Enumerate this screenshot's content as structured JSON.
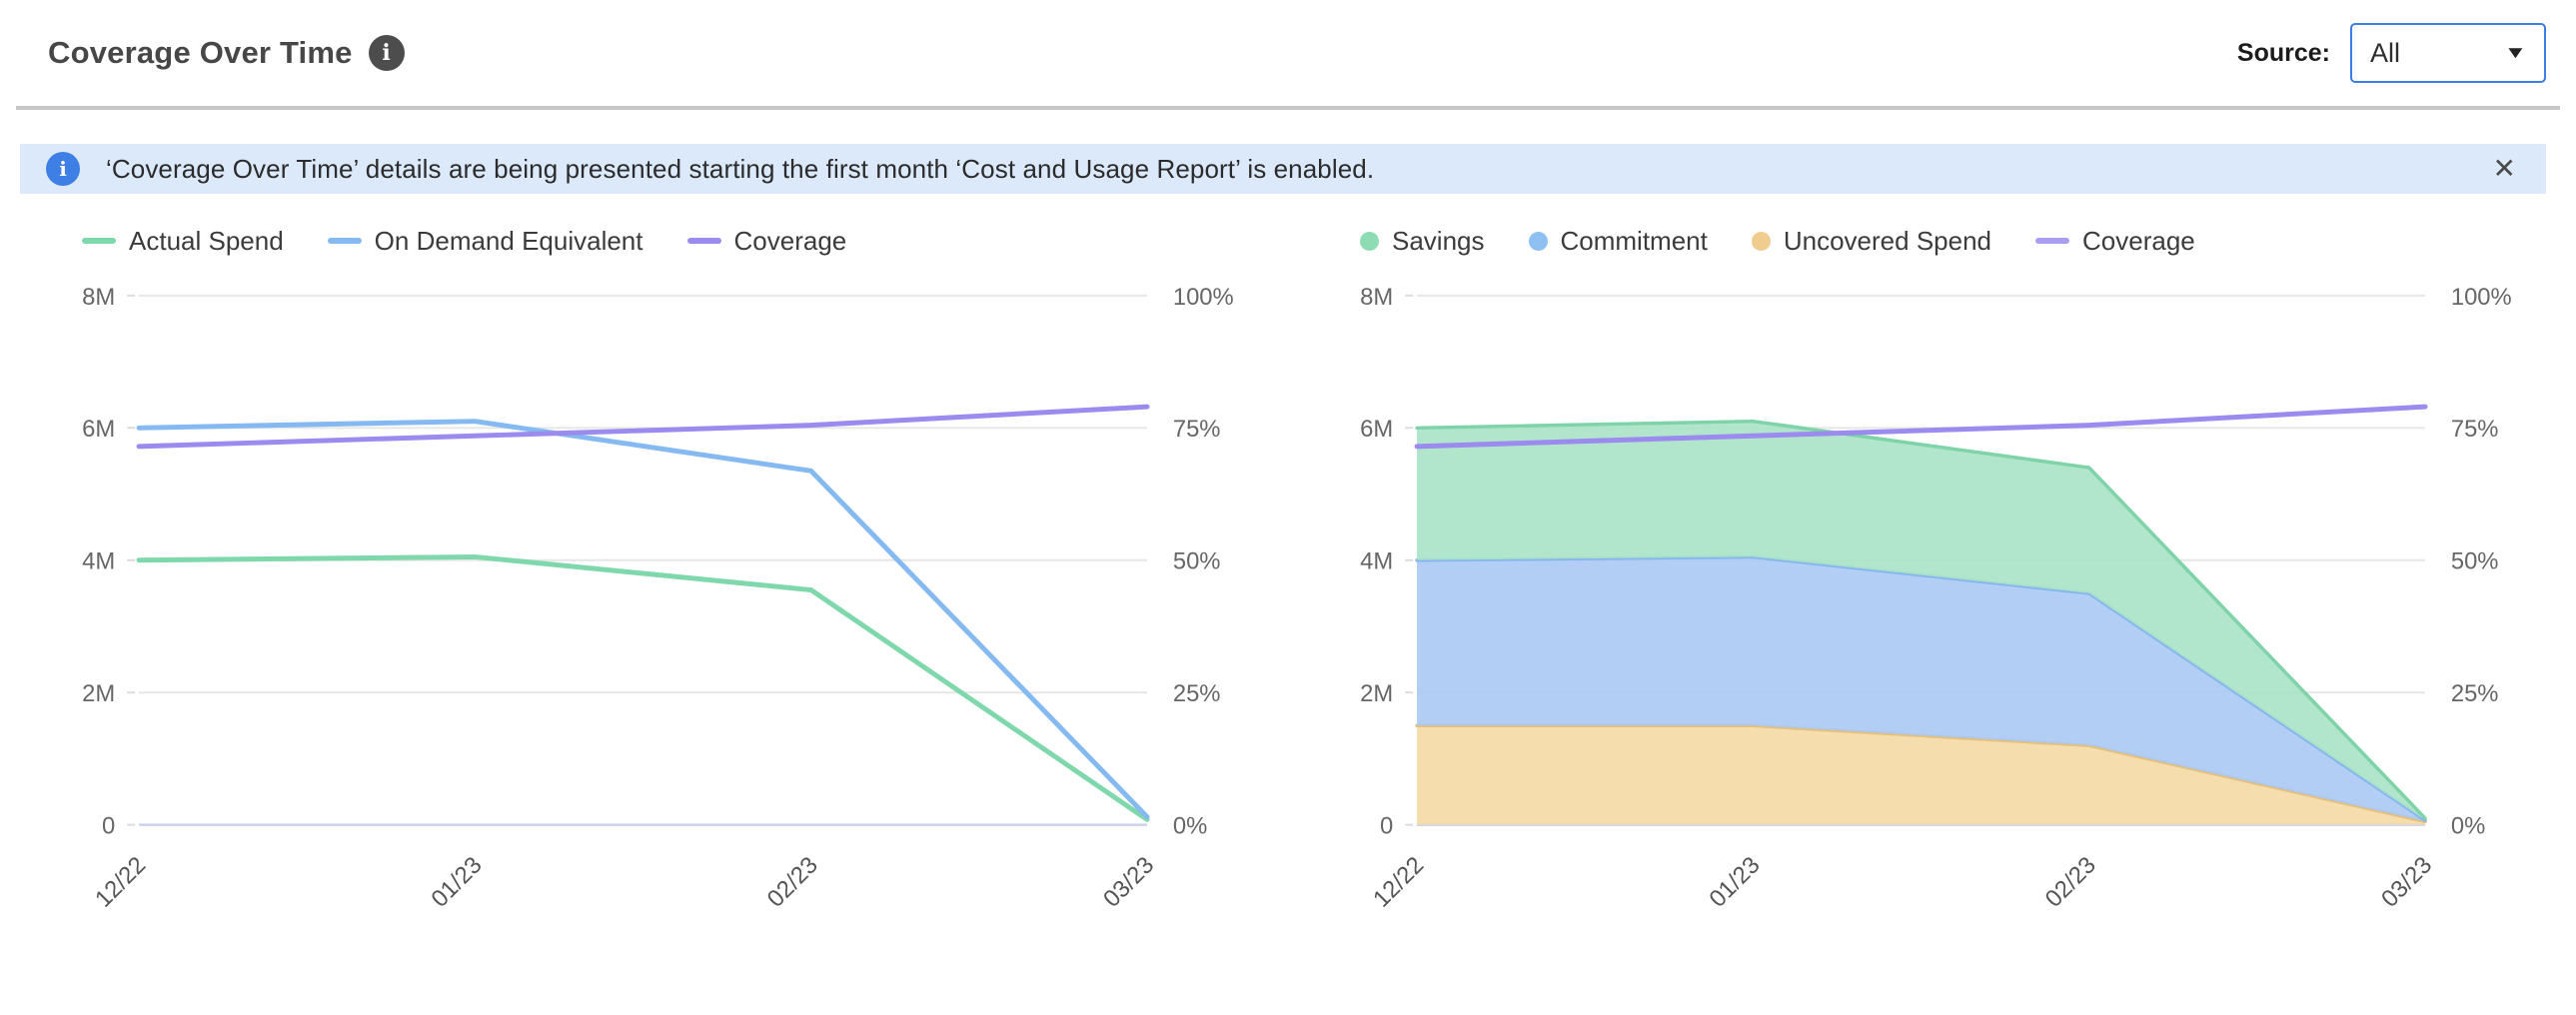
{
  "header": {
    "title": "Coverage Over Time",
    "source_label": "Source:",
    "source_value": "All"
  },
  "banner": {
    "text": "‘Coverage Over Time’ details are being presented starting the first month ‘Cost and Usage Report’ is enabled."
  },
  "icons": {
    "info": "i",
    "chevron_down": "▼",
    "close": "✕"
  },
  "colors": {
    "banner_background": "#dce9fb",
    "banner_icon_blue": "#3d7fe4",
    "title_info_icon_gray": "#4d4d4d",
    "dropdown_border_blue": "#3b7de4",
    "header_divider": "#c7c7c7",
    "grid_line": "#e6e6e6",
    "zero_axis_line": "#c9d3ee",
    "green": "#7fd7ac",
    "blue": "#84b9f1",
    "purple": "#9b8bef",
    "orange": "#e8bf77"
  },
  "chart_data": [
    {
      "type": "line",
      "title": "",
      "x_categories": [
        "12/22",
        "01/23",
        "02/23",
        "03/23"
      ],
      "left_axis": {
        "unit": "M",
        "min": 0,
        "max": 8,
        "ticks": [
          "8M",
          "6M",
          "4M",
          "2M",
          "0"
        ]
      },
      "right_axis": {
        "unit": "%",
        "min": 0,
        "max": 100,
        "ticks": [
          "100%",
          "75%",
          "50%",
          "25%",
          "0%"
        ]
      },
      "grid": true,
      "legend_position": "top-left",
      "series": [
        {
          "name": "Actual Spend",
          "type": "line",
          "axis": "left",
          "color": "#7fd7ac",
          "values": [
            4.0,
            4.05,
            3.55,
            0.08
          ]
        },
        {
          "name": "On Demand Equivalent",
          "type": "line",
          "axis": "left",
          "color": "#84b9f1",
          "values": [
            6.0,
            6.1,
            5.35,
            0.12
          ]
        },
        {
          "name": "Coverage",
          "type": "line",
          "axis": "right",
          "color": "#9b8bef",
          "values": [
            71.5,
            73.5,
            75.5,
            79
          ]
        }
      ],
      "legend": [
        {
          "label": "Actual Spend",
          "marker": "line",
          "color": "#7fd7ac"
        },
        {
          "label": "On Demand Equivalent",
          "marker": "line",
          "color": "#84b9f1"
        },
        {
          "label": "Coverage",
          "marker": "line",
          "color": "#9b8bef"
        }
      ]
    },
    {
      "type": "area",
      "stacked": true,
      "title": "",
      "x_categories": [
        "12/22",
        "01/23",
        "02/23",
        "03/23"
      ],
      "left_axis": {
        "unit": "M",
        "min": 0,
        "max": 8,
        "ticks": [
          "8M",
          "6M",
          "4M",
          "2M",
          "0"
        ]
      },
      "right_axis": {
        "unit": "%",
        "min": 0,
        "max": 100,
        "ticks": [
          "100%",
          "75%",
          "50%",
          "25%",
          "0%"
        ]
      },
      "grid": true,
      "legend_position": "top-left",
      "series": [
        {
          "name": "Uncovered Spend",
          "type": "area",
          "axis": "left",
          "color": "#e8bf77",
          "fill": "#f4d9a4",
          "values": [
            1.5,
            1.5,
            1.2,
            0.05
          ]
        },
        {
          "name": "Commitment",
          "type": "area",
          "axis": "left",
          "color": "#84b4ef",
          "fill": "#aac9f3",
          "values": [
            2.5,
            2.55,
            2.3,
            0.02
          ]
        },
        {
          "name": "Savings",
          "type": "area",
          "axis": "left",
          "color": "#7ed3a9",
          "fill": "#a8e2c6",
          "values": [
            2.0,
            2.05,
            1.9,
            0.03
          ]
        },
        {
          "name": "Coverage",
          "type": "line",
          "axis": "right",
          "color": "#9b8bef",
          "values": [
            71.5,
            73.5,
            75.5,
            79
          ]
        }
      ],
      "legend": [
        {
          "label": "Savings",
          "marker": "circle",
          "color": "#8edcb3"
        },
        {
          "label": "Commitment",
          "marker": "circle",
          "color": "#8fc0f2"
        },
        {
          "label": "Uncovered Spend",
          "marker": "circle",
          "color": "#f0cd8e"
        },
        {
          "label": "Coverage",
          "marker": "line",
          "color": "#a99df0"
        }
      ]
    }
  ]
}
